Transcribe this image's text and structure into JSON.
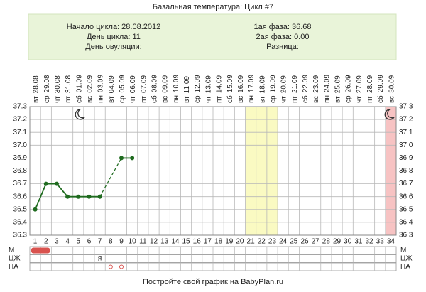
{
  "title": "Базальная температура: Цикл #7",
  "info": {
    "left": [
      "Начало цикла: 28.08.2012",
      "День цикла: 11",
      "День овуляции:"
    ],
    "right": [
      "1ая фаза: 36.68",
      "2ая фаза: 0.00",
      "Разница:"
    ]
  },
  "chart_data": {
    "type": "line",
    "x": [
      1,
      2,
      3,
      4,
      5,
      6,
      7,
      8,
      9,
      10,
      11,
      12,
      13,
      14,
      15,
      16,
      17,
      18,
      19,
      20,
      21,
      22,
      23,
      24,
      25,
      26,
      27,
      28,
      29,
      30,
      31,
      32,
      33,
      34
    ],
    "weekdays": [
      "вт",
      "ср",
      "чт",
      "пт",
      "сб",
      "вс",
      "пн",
      "вт",
      "ср",
      "чт",
      "пт",
      "сб",
      "вс",
      "пн",
      "вт",
      "ср",
      "чт",
      "пт",
      "сб",
      "вс",
      "пн",
      "вт",
      "ср",
      "чт",
      "пт",
      "сб",
      "вс",
      "пн",
      "вт",
      "ср",
      "чт",
      "пт",
      "сб",
      "вс"
    ],
    "dates": [
      "28.08",
      "29.08",
      "30.08",
      "31.08",
      "01.09",
      "02.09",
      "03.09",
      "04.09",
      "05.09",
      "06.09",
      "07.09",
      "08.09",
      "09.09",
      "10.09",
      "11.09",
      "12.09",
      "13.09",
      "14.09",
      "15.09",
      "16.09",
      "17.09",
      "18.09",
      "19.09",
      "20.09",
      "21.09",
      "22.09",
      "23.09",
      "24.09",
      "25.09",
      "26.09",
      "27.09",
      "28.09",
      "29.09",
      "30.09"
    ],
    "series": [
      {
        "color": "#1f6b1f",
        "values": [
          36.5,
          36.7,
          36.7,
          36.6,
          36.6,
          36.6,
          36.6,
          null,
          36.9,
          36.9,
          null,
          null,
          null,
          null,
          null,
          null,
          null,
          null,
          null,
          null,
          null,
          null,
          null,
          null,
          null,
          null,
          null,
          null,
          null,
          null,
          null,
          null,
          null,
          null
        ]
      }
    ],
    "ylim": [
      36.3,
      37.3
    ],
    "yticks": [
      36.3,
      36.4,
      36.5,
      36.6,
      36.7,
      36.8,
      36.9,
      {
        "value": 37,
        "label": "37.0"
      },
      37.1,
      37.2,
      37.3
    ],
    "grid": true,
    "bands": [
      {
        "from": 21,
        "to": 23,
        "color": "#fafac2"
      },
      {
        "from": 34,
        "to": 34,
        "color": "#f7c3c3"
      }
    ],
    "rows": [
      {
        "label": "М",
        "days": [
          1,
          2
        ],
        "color": "#d9534f"
      },
      {
        "label": "ЦЖ",
        "entries": [
          {
            "day": 7,
            "text": "я"
          }
        ]
      },
      {
        "label": "ПА",
        "marks": [
          8,
          9
        ],
        "color": "#d9534f"
      }
    ]
  },
  "footer": "Постройте свой график на BabyPlan.ru"
}
